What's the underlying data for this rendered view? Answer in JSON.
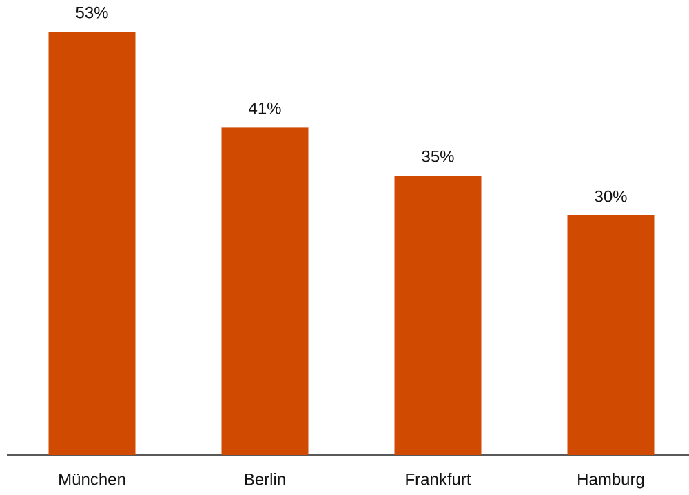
{
  "chart_data": {
    "type": "bar",
    "categories": [
      "München",
      "Berlin",
      "Frankfurt",
      "Hamburg"
    ],
    "values": [
      53,
      41,
      35,
      30
    ],
    "value_labels": [
      "53%",
      "41%",
      "35%",
      "30%"
    ],
    "color": "#d04a02"
  }
}
